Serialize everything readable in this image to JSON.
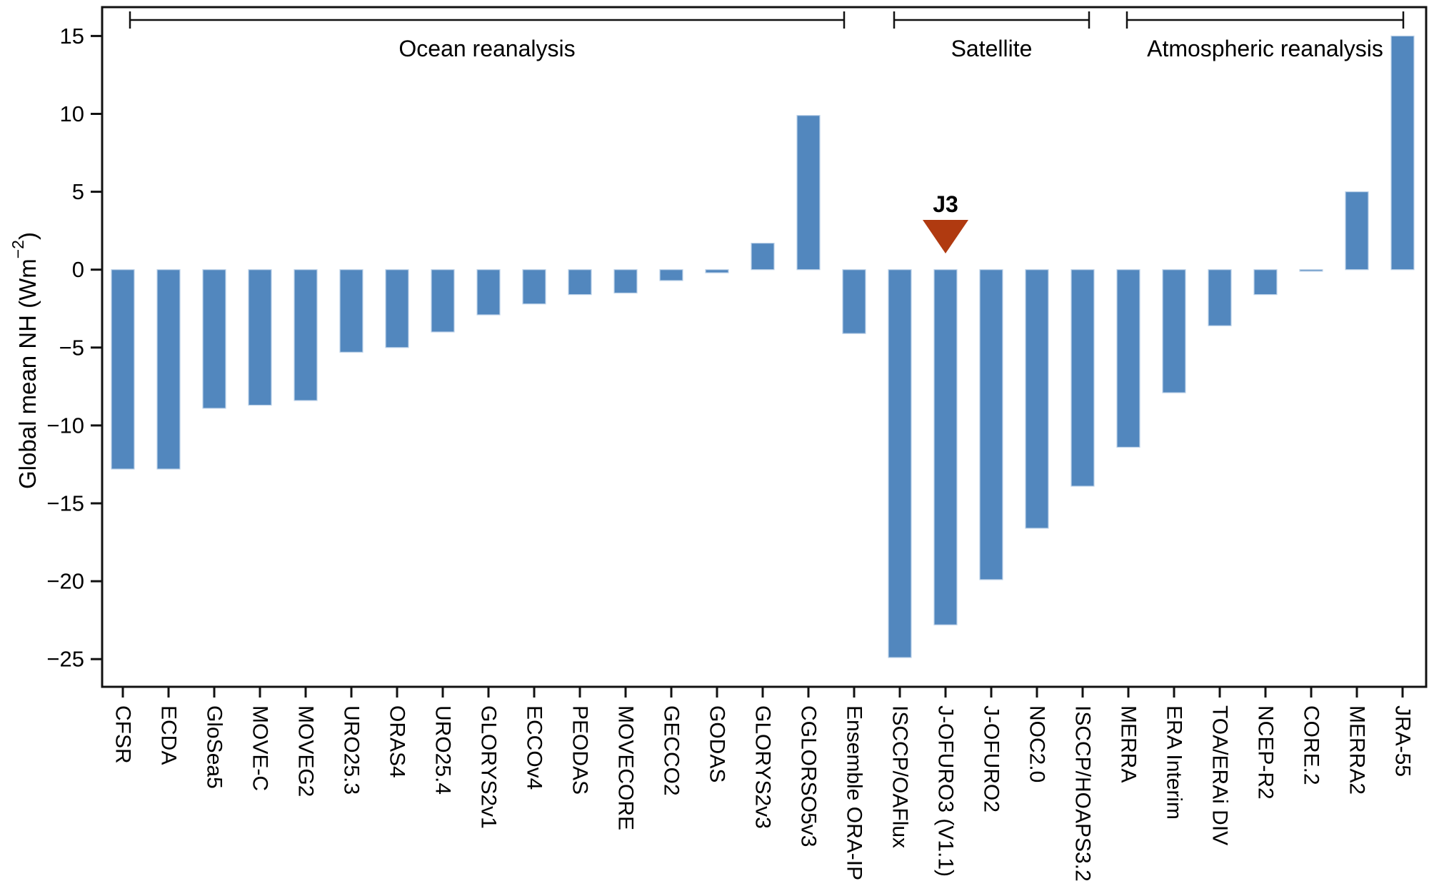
{
  "chart_data": {
    "type": "bar",
    "title": "",
    "xlabel": "",
    "ylabel": "Global mean NH (Wm⁻²)",
    "ylabel_parts": {
      "main": "Global mean NH (Wm",
      "superscript": "−2",
      "close": ")"
    },
    "ylim": [
      -26.8,
      16.9
    ],
    "yticks": [
      -25,
      -20,
      -15,
      -10,
      -5,
      0,
      5,
      10,
      15
    ],
    "grid": false,
    "legend": "none",
    "bar_color": "#5287be",
    "bar_edge_color": "#bcd1e8",
    "frame_color": "#111111",
    "categories": [
      "CFSR",
      "ECDA",
      "GloSea5",
      "MOVE-C",
      "MOVEG2",
      "URO25.3",
      "ORAS4",
      "URO25.4",
      "GLORYS2v1",
      "ECCOv4",
      "PEODAS",
      "MOVECORE",
      "GECCO2",
      "GODAS",
      "GLORYS2v3",
      "CGLORSO5v3",
      "Ensemble ORA-IP",
      "ISCCP/OAFlux",
      "J-OFURO3 (V1.1)",
      "J-OFURO2",
      "NOC2.0",
      "ISCCP/HOAPS3.2",
      "MERRA",
      "ERA Interim",
      "TOA/ERAi DIV",
      "NCEP-R2",
      "CORE.2",
      "MERRA2",
      "JRA-55"
    ],
    "values": [
      -12.8,
      -12.8,
      -8.9,
      -8.7,
      -8.4,
      -5.3,
      -5.0,
      -4.0,
      -2.9,
      -2.2,
      -1.6,
      -1.5,
      -0.7,
      -0.2,
      1.7,
      9.9,
      -4.1,
      -24.9,
      -22.8,
      -19.9,
      -16.6,
      -13.9,
      -11.4,
      -7.9,
      -3.6,
      -1.6,
      -0.1,
      5.0,
      15.0
    ],
    "groups": [
      {
        "label": "Ocean reanalysis",
        "start": 0,
        "end": 16
      },
      {
        "label": "Satellite",
        "start": 17,
        "end": 21
      },
      {
        "label": "Atmospheric reanalysis",
        "start": 22,
        "end": 28
      }
    ],
    "annotation": {
      "label": "J3",
      "category": "J-OFURO3 (V1.1)",
      "marker": "triangle-down",
      "color": "#b03a10"
    }
  }
}
